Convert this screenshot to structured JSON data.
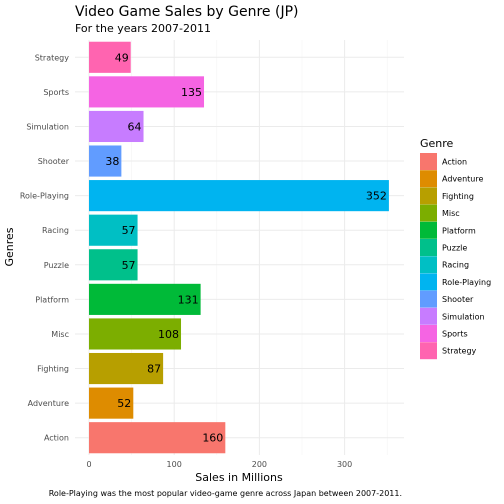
{
  "chart_data": {
    "type": "bar",
    "orientation": "horizontal",
    "title": "Video Game Sales by Genre (JP)",
    "subtitle": "For the years 2007-2011",
    "caption": "Role-Playing was the most popular video-game genre across Japan between 2007-2011.",
    "xlabel": "Sales in Millions",
    "ylabel": "Genres",
    "xlim": [
      0,
      365
    ],
    "xticks": [
      0,
      100,
      200,
      300
    ],
    "grid": true,
    "categories": [
      "Action",
      "Adventure",
      "Fighting",
      "Misc",
      "Platform",
      "Puzzle",
      "Racing",
      "Role-Playing",
      "Shooter",
      "Simulation",
      "Sports",
      "Strategy"
    ],
    "values": [
      160,
      52,
      87,
      108,
      131,
      57,
      57,
      352,
      38,
      64,
      135,
      49
    ],
    "colors": [
      "#F8766D",
      "#DE8C00",
      "#B79F00",
      "#7CAE00",
      "#00BA38",
      "#00C08B",
      "#00BFC4",
      "#00B4F0",
      "#619CFF",
      "#C77CFF",
      "#F564E3",
      "#FF64B0"
    ],
    "legend": {
      "title": "Genre",
      "position": "right",
      "entries": [
        "Action",
        "Adventure",
        "Fighting",
        "Misc",
        "Platform",
        "Puzzle",
        "Racing",
        "Role-Playing",
        "Shooter",
        "Simulation",
        "Sports",
        "Strategy"
      ]
    }
  }
}
